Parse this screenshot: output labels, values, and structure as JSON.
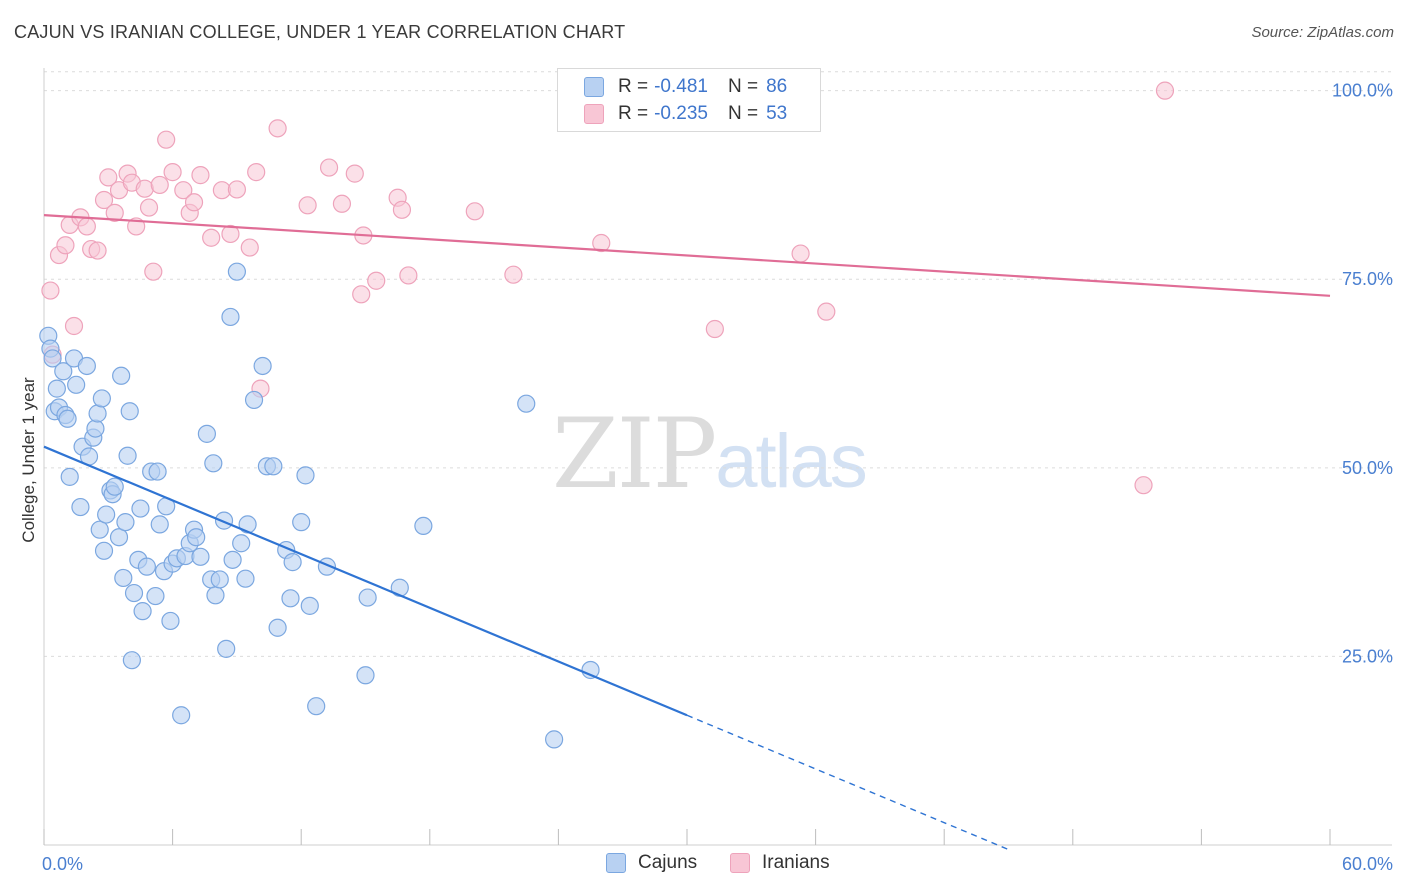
{
  "header": {
    "title": "CAJUN VS IRANIAN COLLEGE, UNDER 1 YEAR CORRELATION CHART",
    "source": "Source: ZipAtlas.com"
  },
  "watermark": {
    "zip": "ZIP",
    "atlas": "atlas"
  },
  "colors": {
    "cajun_fill": "#b8d1f2",
    "cajun_stroke": "#7ba7e0",
    "cajun_line": "#2f74d3",
    "iranian_fill": "#f8c6d5",
    "iranian_stroke": "#eea3bb",
    "iranian_line": "#e06d96",
    "grid": "#dcdcdc",
    "tick_label": "#4a7fd0"
  },
  "legend_top": {
    "rows": [
      {
        "r_label": "R =",
        "r_value": "-0.481",
        "n_label": "N =",
        "n_value": "86"
      },
      {
        "r_label": "R =",
        "r_value": "-0.235",
        "n_label": "N =",
        "n_value": "53"
      }
    ]
  },
  "legend_bottom": {
    "items": [
      "Cajuns",
      "Iranians"
    ]
  },
  "chart_data": {
    "type": "scatter",
    "title": "CAJUN VS IRANIAN COLLEGE, UNDER 1 YEAR CORRELATION CHART",
    "xlabel": "",
    "ylabel": "College, Under 1 year",
    "xlim": [
      0,
      60
    ],
    "ylim": [
      0,
      103
    ],
    "x_tick_labels": [
      {
        "value": 0,
        "label": "0.0%"
      },
      {
        "value": 60,
        "label": "60.0%"
      }
    ],
    "y_tick_labels": [
      {
        "value": 25,
        "label": "25.0%"
      },
      {
        "value": 50,
        "label": "50.0%"
      },
      {
        "value": 75,
        "label": "75.0%"
      },
      {
        "value": 100,
        "label": "100.0%"
      }
    ],
    "x_minor_ticks": [
      0,
      6,
      12,
      18,
      24,
      30,
      36,
      42,
      48,
      54,
      60
    ],
    "grid": true,
    "legend_position": "top-center",
    "series": [
      {
        "name": "Cajuns",
        "r": -0.481,
        "n": 86,
        "trend": {
          "x0": 0,
          "y0": 52.8,
          "x1": 30,
          "y1": 17.2,
          "dash_to_x": 45
        },
        "points": [
          [
            0.2,
            67.5
          ],
          [
            0.3,
            65.8
          ],
          [
            0.4,
            64.5
          ],
          [
            0.5,
            57.5
          ],
          [
            0.6,
            60.5
          ],
          [
            0.7,
            58.0
          ],
          [
            0.9,
            62.8
          ],
          [
            1.0,
            57.0
          ],
          [
            1.1,
            56.5
          ],
          [
            1.2,
            48.8
          ],
          [
            1.4,
            64.5
          ],
          [
            1.5,
            61.0
          ],
          [
            1.7,
            44.8
          ],
          [
            1.8,
            52.8
          ],
          [
            2.0,
            63.5
          ],
          [
            2.1,
            51.5
          ],
          [
            2.3,
            54.0
          ],
          [
            2.4,
            55.2
          ],
          [
            2.5,
            57.2
          ],
          [
            2.6,
            41.8
          ],
          [
            2.7,
            59.2
          ],
          [
            2.8,
            39.0
          ],
          [
            2.9,
            43.8
          ],
          [
            3.1,
            47.0
          ],
          [
            3.2,
            46.5
          ],
          [
            3.3,
            47.5
          ],
          [
            3.5,
            40.8
          ],
          [
            3.6,
            62.2
          ],
          [
            3.7,
            35.4
          ],
          [
            3.8,
            42.8
          ],
          [
            3.9,
            51.6
          ],
          [
            4.0,
            57.5
          ],
          [
            4.1,
            24.5
          ],
          [
            4.2,
            33.4
          ],
          [
            4.4,
            37.8
          ],
          [
            4.5,
            44.6
          ],
          [
            4.6,
            31.0
          ],
          [
            4.8,
            36.9
          ],
          [
            5.0,
            49.5
          ],
          [
            5.2,
            33.0
          ],
          [
            5.3,
            49.5
          ],
          [
            5.4,
            42.5
          ],
          [
            5.6,
            36.3
          ],
          [
            5.7,
            44.9
          ],
          [
            5.9,
            29.7
          ],
          [
            6.0,
            37.3
          ],
          [
            6.2,
            38.0
          ],
          [
            6.4,
            17.2
          ],
          [
            6.6,
            38.3
          ],
          [
            6.8,
            40.0
          ],
          [
            7.0,
            41.8
          ],
          [
            7.1,
            40.8
          ],
          [
            7.3,
            38.2
          ],
          [
            7.6,
            54.5
          ],
          [
            7.8,
            35.2
          ],
          [
            7.9,
            50.6
          ],
          [
            8.0,
            33.1
          ],
          [
            8.2,
            35.2
          ],
          [
            8.4,
            43.0
          ],
          [
            8.5,
            26.0
          ],
          [
            8.7,
            70.0
          ],
          [
            8.8,
            37.8
          ],
          [
            9.0,
            76.0
          ],
          [
            9.2,
            40.0
          ],
          [
            9.4,
            35.3
          ],
          [
            9.5,
            42.5
          ],
          [
            9.8,
            59.0
          ],
          [
            10.2,
            63.5
          ],
          [
            10.4,
            50.2
          ],
          [
            10.7,
            50.2
          ],
          [
            10.9,
            28.8
          ],
          [
            11.3,
            39.1
          ],
          [
            11.5,
            32.7
          ],
          [
            11.6,
            37.5
          ],
          [
            12.0,
            42.8
          ],
          [
            12.2,
            49.0
          ],
          [
            12.4,
            31.7
          ],
          [
            12.7,
            18.4
          ],
          [
            13.2,
            36.9
          ],
          [
            15.0,
            22.5
          ],
          [
            15.1,
            32.8
          ],
          [
            16.6,
            34.1
          ],
          [
            17.7,
            42.3
          ],
          [
            22.5,
            58.5
          ],
          [
            23.8,
            14.0
          ],
          [
            25.5,
            23.2
          ]
        ]
      },
      {
        "name": "Iranians",
        "r": -0.235,
        "n": 53,
        "trend": {
          "x0": 0,
          "y0": 83.5,
          "x1": 60,
          "y1": 72.8
        },
        "points": [
          [
            0.3,
            73.5
          ],
          [
            0.4,
            65.0
          ],
          [
            0.7,
            78.2
          ],
          [
            1.0,
            79.5
          ],
          [
            1.2,
            82.2
          ],
          [
            1.4,
            68.8
          ],
          [
            1.7,
            83.2
          ],
          [
            2.0,
            82.0
          ],
          [
            2.2,
            79.0
          ],
          [
            2.5,
            78.8
          ],
          [
            2.8,
            85.5
          ],
          [
            3.0,
            88.5
          ],
          [
            3.3,
            83.8
          ],
          [
            3.5,
            86.8
          ],
          [
            3.9,
            89.0
          ],
          [
            4.1,
            87.8
          ],
          [
            4.3,
            82.0
          ],
          [
            4.7,
            87.0
          ],
          [
            4.9,
            84.5
          ],
          [
            5.1,
            76.0
          ],
          [
            5.4,
            87.5
          ],
          [
            5.7,
            93.5
          ],
          [
            6.0,
            89.2
          ],
          [
            6.5,
            86.8
          ],
          [
            6.8,
            83.8
          ],
          [
            7.0,
            85.2
          ],
          [
            7.3,
            88.8
          ],
          [
            7.8,
            80.5
          ],
          [
            8.3,
            86.8
          ],
          [
            8.7,
            81.0
          ],
          [
            9.0,
            86.9
          ],
          [
            9.6,
            79.2
          ],
          [
            9.9,
            89.2
          ],
          [
            10.1,
            60.5
          ],
          [
            10.9,
            95.0
          ],
          [
            12.3,
            84.8
          ],
          [
            13.3,
            89.8
          ],
          [
            13.9,
            85.0
          ],
          [
            14.5,
            89.0
          ],
          [
            14.8,
            73.0
          ],
          [
            14.9,
            80.8
          ],
          [
            15.5,
            74.8
          ],
          [
            16.5,
            85.8
          ],
          [
            16.7,
            84.2
          ],
          [
            17.0,
            75.5
          ],
          [
            20.1,
            84.0
          ],
          [
            21.9,
            75.6
          ],
          [
            26.0,
            79.8
          ],
          [
            31.3,
            68.4
          ],
          [
            35.3,
            78.4
          ],
          [
            36.5,
            70.7
          ],
          [
            51.3,
            47.7
          ],
          [
            52.3,
            100.0
          ]
        ]
      }
    ]
  }
}
